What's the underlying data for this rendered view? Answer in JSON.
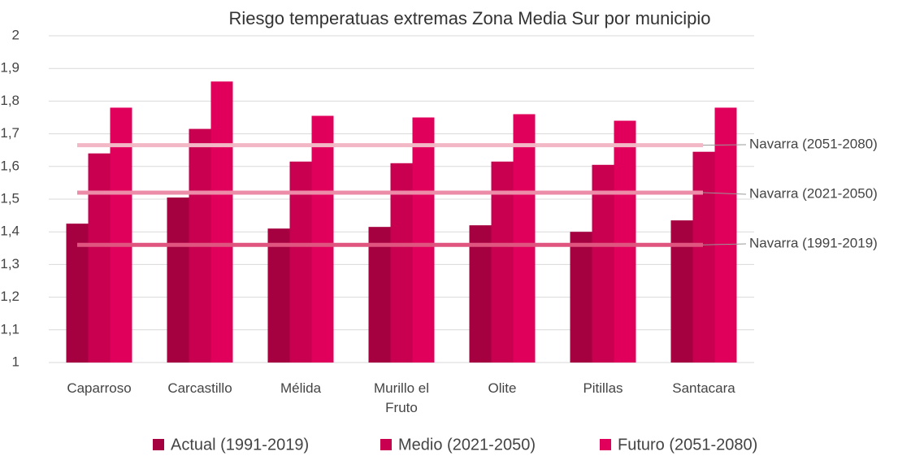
{
  "chart_data": {
    "type": "bar",
    "title": "Riesgo temperatuas extremas Zona Media Sur por municipio",
    "categories": [
      "Caparroso",
      "Carcastillo",
      "Mélida",
      "Murillo el Fruto",
      "Olite",
      "Pitillas",
      "Santacara"
    ],
    "series": [
      {
        "name": "Actual (1991-2019)",
        "color": "#a50040",
        "values": [
          1.425,
          1.505,
          1.41,
          1.415,
          1.42,
          1.4,
          1.435
        ]
      },
      {
        "name": "Medio (2021-2050)",
        "color": "#c8004f",
        "values": [
          1.64,
          1.715,
          1.615,
          1.61,
          1.615,
          1.605,
          1.645
        ]
      },
      {
        "name": "Futuro (2051-2080)",
        "color": "#e0005c",
        "values": [
          1.78,
          1.86,
          1.755,
          1.75,
          1.76,
          1.74,
          1.78
        ]
      }
    ],
    "reference_lines": [
      {
        "name": "Navarra (2051-2080)",
        "value": 1.665,
        "color": "#f2b8c6"
      },
      {
        "name": "Navarra (2021-2050)",
        "value": 1.52,
        "color": "#ec8ca8"
      },
      {
        "name": "Navarra (1991-2019)",
        "value": 1.36,
        "color": "#df5580"
      }
    ],
    "ylim": [
      1,
      2
    ],
    "yticks": [
      1,
      {
        "value": 1.1,
        "label": "1,1"
      },
      {
        "value": 1.2,
        "label": "1,2"
      },
      {
        "value": 1.3,
        "label": "1,3"
      },
      {
        "value": 1.4,
        "label": "1,4"
      },
      {
        "value": 1.5,
        "label": "1,5"
      },
      {
        "value": 1.6,
        "label": "1,6"
      },
      {
        "value": 1.7,
        "label": "1,7"
      },
      {
        "value": 1.8,
        "label": "1,8"
      },
      {
        "value": 1.9,
        "label": "1,9"
      },
      2
    ],
    "grid": true,
    "legend": "bottom"
  }
}
